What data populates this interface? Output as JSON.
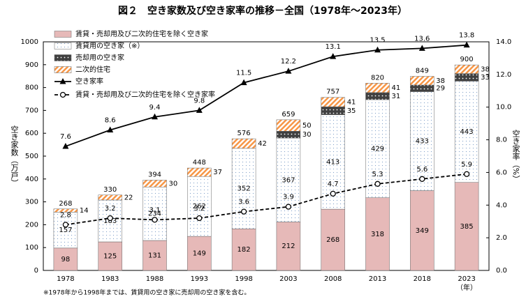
{
  "chart_data": {
    "type": "bar",
    "title": "図２　空き家数及び空き家率の推移－全国（1978年～2023年）",
    "ylabel": "空き家数（万戸）",
    "y2label": "空き家率（%）",
    "xunit": "（年）",
    "footnote": "※1978年から1998年までは、賃貸用の空き家に売却用の空き家を含む。",
    "categories": [
      "1978",
      "1983",
      "1988",
      "1993",
      "1998",
      "2003",
      "2008",
      "2013",
      "2018",
      "2023"
    ],
    "series": [
      {
        "name": "賃貸・売却用及び二次的住宅を除く空き家",
        "color": "#e6b9b8",
        "pattern": "solid",
        "values": [
          98,
          125,
          131,
          149,
          182,
          212,
          268,
          318,
          349,
          385
        ]
      },
      {
        "name": "賃貸用の空き家（※）",
        "color": "#7f9fc8",
        "pattern": "dots",
        "values": [
          157,
          183,
          234,
          262,
          352,
          367,
          413,
          429,
          433,
          443
        ]
      },
      {
        "name": "売却用の空き家",
        "color": "#404040",
        "pattern": "dark-dots",
        "values": [
          null,
          null,
          null,
          null,
          null,
          30,
          35,
          31,
          29,
          33
        ]
      },
      {
        "name": "二次的住宅",
        "color": "#f79646",
        "pattern": "stripes",
        "values": [
          14,
          22,
          30,
          37,
          42,
          50,
          41,
          41,
          38,
          38
        ]
      },
      {
        "name": "空き家率",
        "color": "#000000",
        "type": "line",
        "marker": "triangle",
        "dashed": false,
        "axis": "y2",
        "values": [
          7.6,
          8.6,
          9.4,
          9.8,
          11.5,
          12.2,
          13.1,
          13.5,
          13.6,
          13.8
        ]
      },
      {
        "name": "賃貸・売却用及び二次的住宅を除く空き家率",
        "color": "#000000",
        "type": "line",
        "marker": "circle",
        "dashed": true,
        "axis": "y2",
        "values": [
          2.8,
          3.2,
          3.1,
          3.2,
          3.6,
          3.9,
          4.7,
          5.3,
          5.6,
          5.9
        ]
      }
    ],
    "totals": [
      268,
      330,
      394,
      448,
      576,
      659,
      757,
      820,
      849,
      900
    ],
    "ylim": [
      0,
      1000
    ],
    "yticks": [
      0,
      100,
      200,
      300,
      400,
      500,
      600,
      700,
      800,
      900,
      1000
    ],
    "y2lim": [
      0,
      14
    ],
    "y2ticks": [
      {
        "value": 0,
        "label": "0.0"
      },
      {
        "value": 2,
        "label": "2.0"
      },
      {
        "value": 4,
        "label": "4.0"
      },
      {
        "value": 6,
        "label": "6.0"
      },
      {
        "value": 8,
        "label": "8.0"
      },
      {
        "value": 10,
        "label": "10.0"
      },
      {
        "value": 12,
        "label": "12.0"
      },
      {
        "value": 14,
        "label": "14.0"
      }
    ],
    "legend": "upper left",
    "grid": false
  }
}
